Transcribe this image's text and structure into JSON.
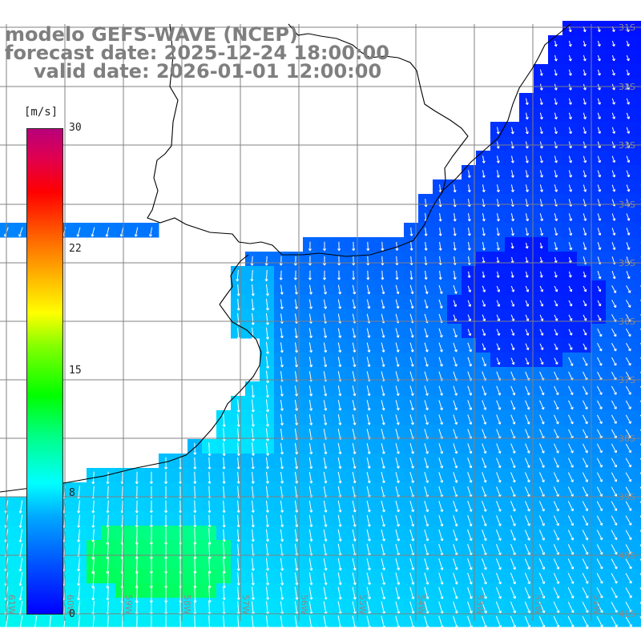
{
  "header": {
    "line1": "modelo GEFS-WAVE (NCEP)",
    "line2": "forecast date: 2025-12-24 18:00:00",
    "line3": "valid date: 2026-01-01 12:00:00"
  },
  "colorbar": {
    "unit": "[m/s]",
    "ticks": [
      {
        "label": "30",
        "value": 30
      },
      {
        "label": "22",
        "value": 22
      },
      {
        "label": "15",
        "value": 15
      },
      {
        "label": "8",
        "value": 8
      },
      {
        "label": "0",
        "value": 0
      }
    ]
  },
  "map": {
    "lat_labels": [
      "31S",
      "32S",
      "33S",
      "34S",
      "35S",
      "36S",
      "37S",
      "38S",
      "39S",
      "40S",
      "41S"
    ],
    "lon_labels": [
      "61W",
      "60W",
      "59W",
      "58W",
      "57W",
      "56W",
      "55W",
      "54W",
      "53W",
      "52W",
      "51W"
    ],
    "colors": {
      "land": "#ffffff",
      "grid": "#808080",
      "coast": "#000000",
      "arrows": "#ffffff",
      "label": "#8a8a8a"
    }
  }
}
